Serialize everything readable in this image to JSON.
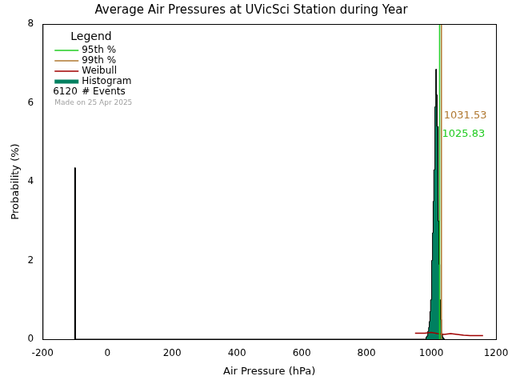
{
  "chart_data": {
    "type": "histogram",
    "title": "Average Air Pressures at UVicSci Station during Year",
    "x_label": "Air Pressure (hPa)",
    "y_label": "Probability (%)",
    "xlim": [
      -200,
      1200
    ],
    "xticks": [
      -200,
      0,
      200,
      400,
      600,
      800,
      1000,
      1200
    ],
    "ylim": [
      0,
      8
    ],
    "yticks": [
      0,
      2,
      4,
      6,
      8
    ],
    "grid": false,
    "legend": "upper left",
    "legend_title": "Legend",
    "percentiles": [
      {
        "name": "95th %",
        "color": "#22cc22",
        "value": 1025.83
      },
      {
        "name": "99th %",
        "color": "#b07830",
        "value": 1031.53
      }
    ],
    "series": [
      {
        "name": "Weibull",
        "color": "#a00000",
        "x": [
          950,
          980,
          1000,
          1020,
          1040,
          1060,
          1080,
          1100,
          1120,
          1140,
          1160
        ],
        "values": [
          0.15,
          0.15,
          0.17,
          0.14,
          0.12,
          0.14,
          0.12,
          0.1,
          0.09,
          0.09,
          0.09
        ]
      }
    ],
    "histogram": {
      "name": "Histogram",
      "color": "#008060",
      "bins": [
        -101,
        -99,
        984,
        986,
        988,
        990,
        992,
        994,
        996,
        998,
        1000,
        1002,
        1004,
        1006,
        1008,
        1010,
        1012,
        1014,
        1016,
        1018,
        1020,
        1022,
        1024,
        1026,
        1028,
        1030,
        1032,
        1034,
        1036,
        1038,
        1040
      ],
      "values": [
        4.35,
        0,
        0.05,
        0.08,
        0.12,
        0.2,
        0.3,
        0.45,
        0.7,
        1.0,
        1.4,
        2.0,
        2.7,
        3.5,
        4.3,
        5.2,
        5.9,
        6.85,
        6.2,
        5.4,
        4.2,
        3.0,
        1.9,
        1.0,
        0.5,
        0.25,
        0.12,
        0.06,
        0.03,
        0.01
      ]
    },
    "events": {
      "count": 6120,
      "label": "# Events"
    },
    "footnote": "Made on 25 Apr 2025"
  }
}
